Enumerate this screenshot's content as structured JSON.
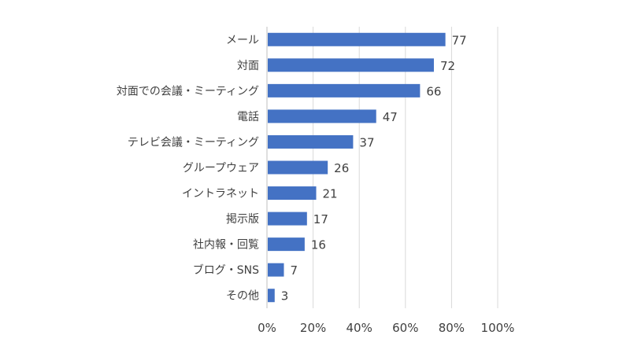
{
  "chart_data": {
    "type": "bar",
    "orientation": "horizontal",
    "categories": [
      "メール",
      "対面",
      "対面での会議・ミーティング",
      "電話",
      "テレビ会議・ミーティング",
      "グループウェア",
      "イントラネット",
      "掲示版",
      "社内報・回覧",
      "ブログ・SNS",
      "その他"
    ],
    "values": [
      77,
      72,
      66,
      47,
      37,
      26,
      21,
      17,
      16,
      7,
      3
    ],
    "xlim": [
      0,
      100
    ],
    "xticks": [
      "0%",
      "20%",
      "40%",
      "60%",
      "80%",
      "100%"
    ],
    "grid": true,
    "legend": "none",
    "colors": {
      "bar": "#4472C4",
      "grid": "#D9D9D9",
      "axis": "#BFBFBF",
      "text": "#404040"
    }
  }
}
